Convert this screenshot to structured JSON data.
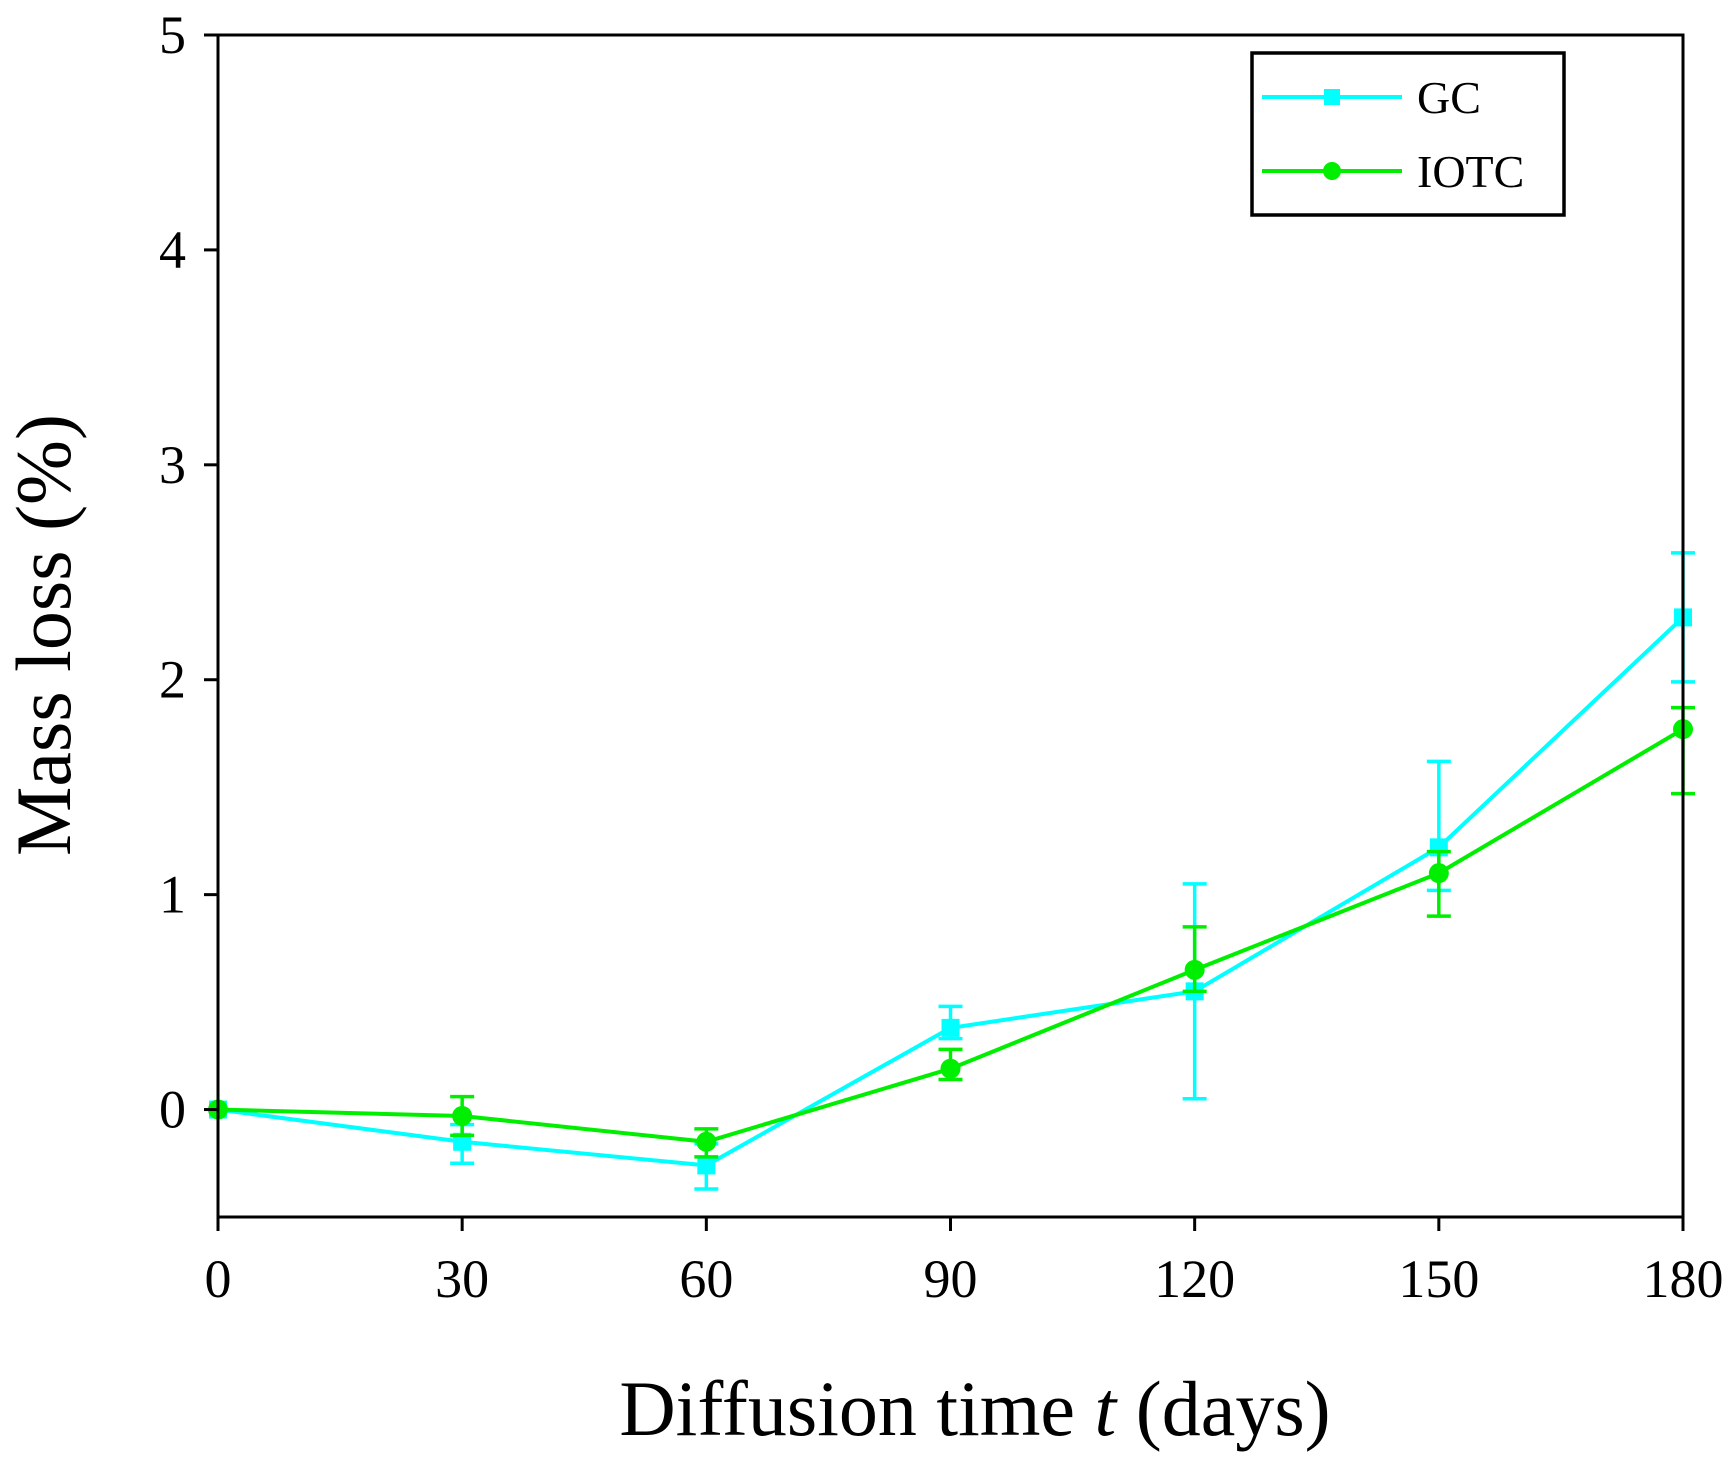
{
  "chart_data": {
    "type": "line",
    "title": "",
    "xlabel": "Diffusion time",
    "xlabel_var": "t",
    "xlabel_unit": "(days)",
    "ylabel": "Mass loss (%)",
    "xlim": [
      0,
      180
    ],
    "ylim": [
      -0.5,
      5
    ],
    "xticks": [
      0,
      30,
      60,
      90,
      120,
      150,
      180
    ],
    "yticks": [
      0,
      1,
      2,
      3,
      4,
      5
    ],
    "grid": false,
    "legend_position": "top-right",
    "series": [
      {
        "name": "GC",
        "color": "#00FFFF",
        "marker": "square",
        "x": [
          0,
          30,
          60,
          90,
          120,
          150,
          180
        ],
        "values": [
          0,
          -0.15,
          -0.26,
          0.38,
          0.55,
          1.22,
          2.29
        ],
        "err_upper": [
          0,
          0.08,
          0.1,
          0.1,
          0.5,
          0.4,
          0.3
        ],
        "err_lower": [
          0,
          0.1,
          0.11,
          0.05,
          0.5,
          0.2,
          0.3
        ]
      },
      {
        "name": "IOTC",
        "color": "#00EE00",
        "marker": "circle",
        "x": [
          0,
          30,
          60,
          90,
          120,
          150,
          180
        ],
        "values": [
          0,
          -0.03,
          -0.15,
          0.19,
          0.65,
          1.1,
          1.77
        ],
        "err_upper": [
          0,
          0.09,
          0.06,
          0.09,
          0.2,
          0.1,
          0.1
        ],
        "err_lower": [
          0,
          0.09,
          0.07,
          0.05,
          0.1,
          0.2,
          0.3
        ]
      }
    ]
  }
}
